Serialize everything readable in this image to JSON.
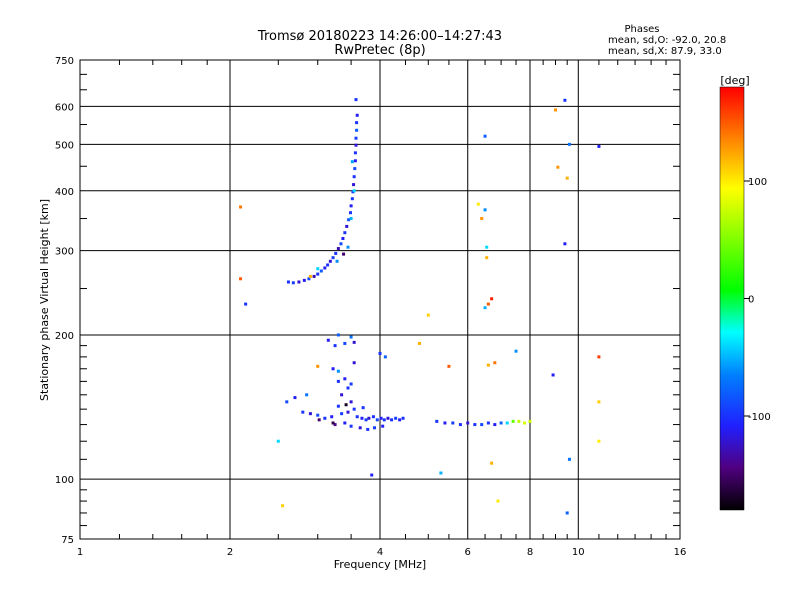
{
  "chart_data": {
    "type": "scatter",
    "title": "Tromsø 20180223 14:26:00–14:27:43",
    "subtitle": "RwPretec (8p)",
    "xlabel": "Frequency [MHz]",
    "ylabel": "Stationary phase Virtual Height [km]",
    "x_scale": "log",
    "y_scale": "log",
    "xlim": [
      1,
      16
    ],
    "ylim": [
      75,
      750
    ],
    "x_ticks": [
      "1",
      "2",
      "4",
      "6",
      "8",
      "10",
      "16"
    ],
    "x_tick_values": [
      1,
      2,
      4,
      6,
      8,
      10,
      16
    ],
    "y_ticks": [
      "75",
      "100",
      "200",
      "300",
      "400",
      "500",
      "600",
      "750"
    ],
    "y_tick_values": [
      75,
      100,
      200,
      300,
      400,
      500,
      600,
      750
    ],
    "grid": true,
    "colorbar": {
      "label": "[deg]",
      "range": [
        -180,
        180
      ],
      "ticks": [
        "100",
        "0",
        "-100"
      ],
      "tick_values": [
        100,
        0,
        -100
      ]
    },
    "info": {
      "heading": "Phases",
      "line1": "mean, sd,O: -92.0, 20.8",
      "line2": "mean, sd,X:  87.9, 33.0"
    },
    "series": [
      {
        "points": [
          [
            2.62,
            258,
            -100
          ],
          [
            2.68,
            257,
            -95
          ],
          [
            2.75,
            258,
            -120
          ],
          [
            2.82,
            260,
            -110
          ],
          [
            2.88,
            262,
            -90
          ],
          [
            2.95,
            265,
            -130
          ],
          [
            3.0,
            268,
            -100
          ],
          [
            3.05,
            272,
            -80
          ],
          [
            3.1,
            276,
            -110
          ],
          [
            3.14,
            280,
            -100
          ],
          [
            3.18,
            285,
            -120
          ],
          [
            3.22,
            290,
            -95
          ],
          [
            3.26,
            296,
            -100
          ],
          [
            3.3,
            303,
            -130
          ],
          [
            3.34,
            310,
            -90
          ],
          [
            3.37,
            318,
            -110
          ],
          [
            3.4,
            327,
            -100
          ],
          [
            3.43,
            337,
            -120
          ],
          [
            3.46,
            348,
            -85
          ],
          [
            3.49,
            360,
            -100
          ],
          [
            3.5,
            372,
            -110
          ],
          [
            3.52,
            385,
            -95
          ],
          [
            3.53,
            398,
            -100
          ],
          [
            3.54,
            412,
            -120
          ],
          [
            3.55,
            428,
            -100
          ],
          [
            3.56,
            445,
            -90
          ],
          [
            3.57,
            462,
            -110
          ],
          [
            3.57,
            480,
            -100
          ],
          [
            3.58,
            498,
            -120
          ],
          [
            3.58,
            515,
            -95
          ],
          [
            3.59,
            535,
            -80
          ],
          [
            3.59,
            555,
            -100
          ],
          [
            3.6,
            575,
            -110
          ],
          [
            3.58,
            620,
            -100
          ],
          [
            3.45,
            305,
            -60
          ],
          [
            3.38,
            295,
            -150
          ],
          [
            3.28,
            285,
            -60
          ],
          [
            3.5,
            350,
            -50
          ],
          [
            3.55,
            400,
            -40
          ],
          [
            3.52,
            460,
            -55
          ],
          [
            2.9,
            265,
            120
          ],
          [
            3.0,
            275,
            -40
          ],
          [
            3.6,
            135,
            -100
          ],
          [
            3.68,
            134,
            -110
          ],
          [
            3.75,
            133,
            -95
          ],
          [
            3.8,
            134,
            -120
          ],
          [
            3.88,
            135,
            -100
          ],
          [
            3.95,
            133,
            -90
          ],
          [
            4.02,
            134,
            -110
          ],
          [
            4.08,
            133,
            -100
          ],
          [
            4.15,
            134,
            -120
          ],
          [
            4.22,
            133,
            -100
          ],
          [
            4.3,
            134,
            -95
          ],
          [
            4.38,
            133,
            -110
          ],
          [
            4.45,
            134,
            -100
          ],
          [
            3.55,
            140,
            -100
          ],
          [
            3.45,
            138,
            -120
          ],
          [
            3.35,
            137,
            -95
          ],
          [
            3.2,
            135,
            -110
          ],
          [
            3.1,
            134,
            -100
          ],
          [
            3.0,
            136,
            -90
          ],
          [
            2.9,
            137,
            -120
          ],
          [
            2.8,
            138,
            -100
          ],
          [
            3.25,
            130,
            -140
          ],
          [
            3.4,
            131,
            -110
          ],
          [
            3.5,
            129,
            -100
          ],
          [
            3.65,
            128,
            -120
          ],
          [
            3.78,
            127,
            -100
          ],
          [
            3.9,
            128,
            -95
          ],
          [
            4.05,
            129,
            -110
          ],
          [
            3.3,
            142,
            -100
          ],
          [
            3.5,
            145,
            -120
          ],
          [
            3.7,
            141,
            -100
          ],
          [
            3.42,
            143,
            -170
          ],
          [
            3.22,
            131,
            -160
          ],
          [
            3.02,
            133,
            -150
          ],
          [
            5.2,
            132,
            -100
          ],
          [
            5.4,
            131,
            -110
          ],
          [
            5.6,
            131,
            -95
          ],
          [
            5.8,
            130,
            -100
          ],
          [
            6.0,
            131,
            -120
          ],
          [
            6.2,
            130,
            -100
          ],
          [
            6.4,
            130,
            -90
          ],
          [
            6.6,
            131,
            -100
          ],
          [
            6.8,
            130,
            -110
          ],
          [
            7.0,
            131,
            -80
          ],
          [
            7.2,
            131,
            -40
          ],
          [
            7.4,
            132,
            40
          ],
          [
            7.6,
            132,
            70
          ],
          [
            7.8,
            131,
            80
          ],
          [
            8.0,
            132,
            75
          ],
          [
            3.15,
            195,
            -110
          ],
          [
            3.25,
            190,
            -100
          ],
          [
            3.4,
            192,
            -90
          ],
          [
            3.55,
            193,
            -120
          ],
          [
            3.3,
            200,
            -80
          ],
          [
            3.5,
            198,
            -70
          ],
          [
            3.3,
            160,
            -100
          ],
          [
            3.4,
            162,
            -110
          ],
          [
            3.5,
            158,
            -95
          ],
          [
            3.35,
            150,
            -120
          ],
          [
            3.45,
            155,
            -100
          ],
          [
            3.22,
            170,
            -110
          ],
          [
            3.3,
            168,
            -60
          ],
          [
            2.6,
            145,
            -90
          ],
          [
            2.7,
            148,
            -110
          ],
          [
            2.85,
            150,
            -70
          ],
          [
            3.0,
            172,
            130
          ],
          [
            3.55,
            175,
            -120
          ],
          [
            4.1,
            180,
            -80
          ],
          [
            4.0,
            183,
            -100
          ],
          [
            2.5,
            120,
            -40
          ],
          [
            3.85,
            102,
            -110
          ],
          [
            5.3,
            103,
            -50
          ],
          [
            9.6,
            110,
            -70
          ],
          [
            2.55,
            88,
            110
          ],
          [
            9.5,
            85,
            -80
          ],
          [
            2.1,
            370,
            140
          ],
          [
            2.1,
            262,
            150
          ],
          [
            2.15,
            232,
            -100
          ],
          [
            4.8,
            192,
            120
          ],
          [
            5.5,
            172,
            150
          ],
          [
            5.0,
            220,
            110
          ],
          [
            6.3,
            375,
            100
          ],
          [
            6.5,
            365,
            -60
          ],
          [
            6.55,
            305,
            -40
          ],
          [
            6.55,
            290,
            120
          ],
          [
            6.4,
            350,
            130
          ],
          [
            6.6,
            232,
            150
          ],
          [
            6.7,
            238,
            170
          ],
          [
            6.5,
            228,
            -50
          ],
          [
            6.6,
            173,
            120
          ],
          [
            6.8,
            175,
            140
          ],
          [
            7.5,
            185,
            -60
          ],
          [
            6.5,
            520,
            -80
          ],
          [
            9.0,
            590,
            130
          ],
          [
            9.4,
            618,
            -100
          ],
          [
            9.6,
            500,
            -70
          ],
          [
            9.5,
            425,
            120
          ],
          [
            9.1,
            448,
            130
          ],
          [
            9.4,
            310,
            -110
          ],
          [
            11.0,
            495,
            -110
          ],
          [
            11.0,
            180,
            160
          ],
          [
            11.0,
            145,
            110
          ],
          [
            11.0,
            120,
            100
          ],
          [
            8.9,
            165,
            -110
          ],
          [
            6.7,
            108,
            120
          ],
          [
            6.9,
            90,
            100
          ]
        ]
      }
    ]
  }
}
